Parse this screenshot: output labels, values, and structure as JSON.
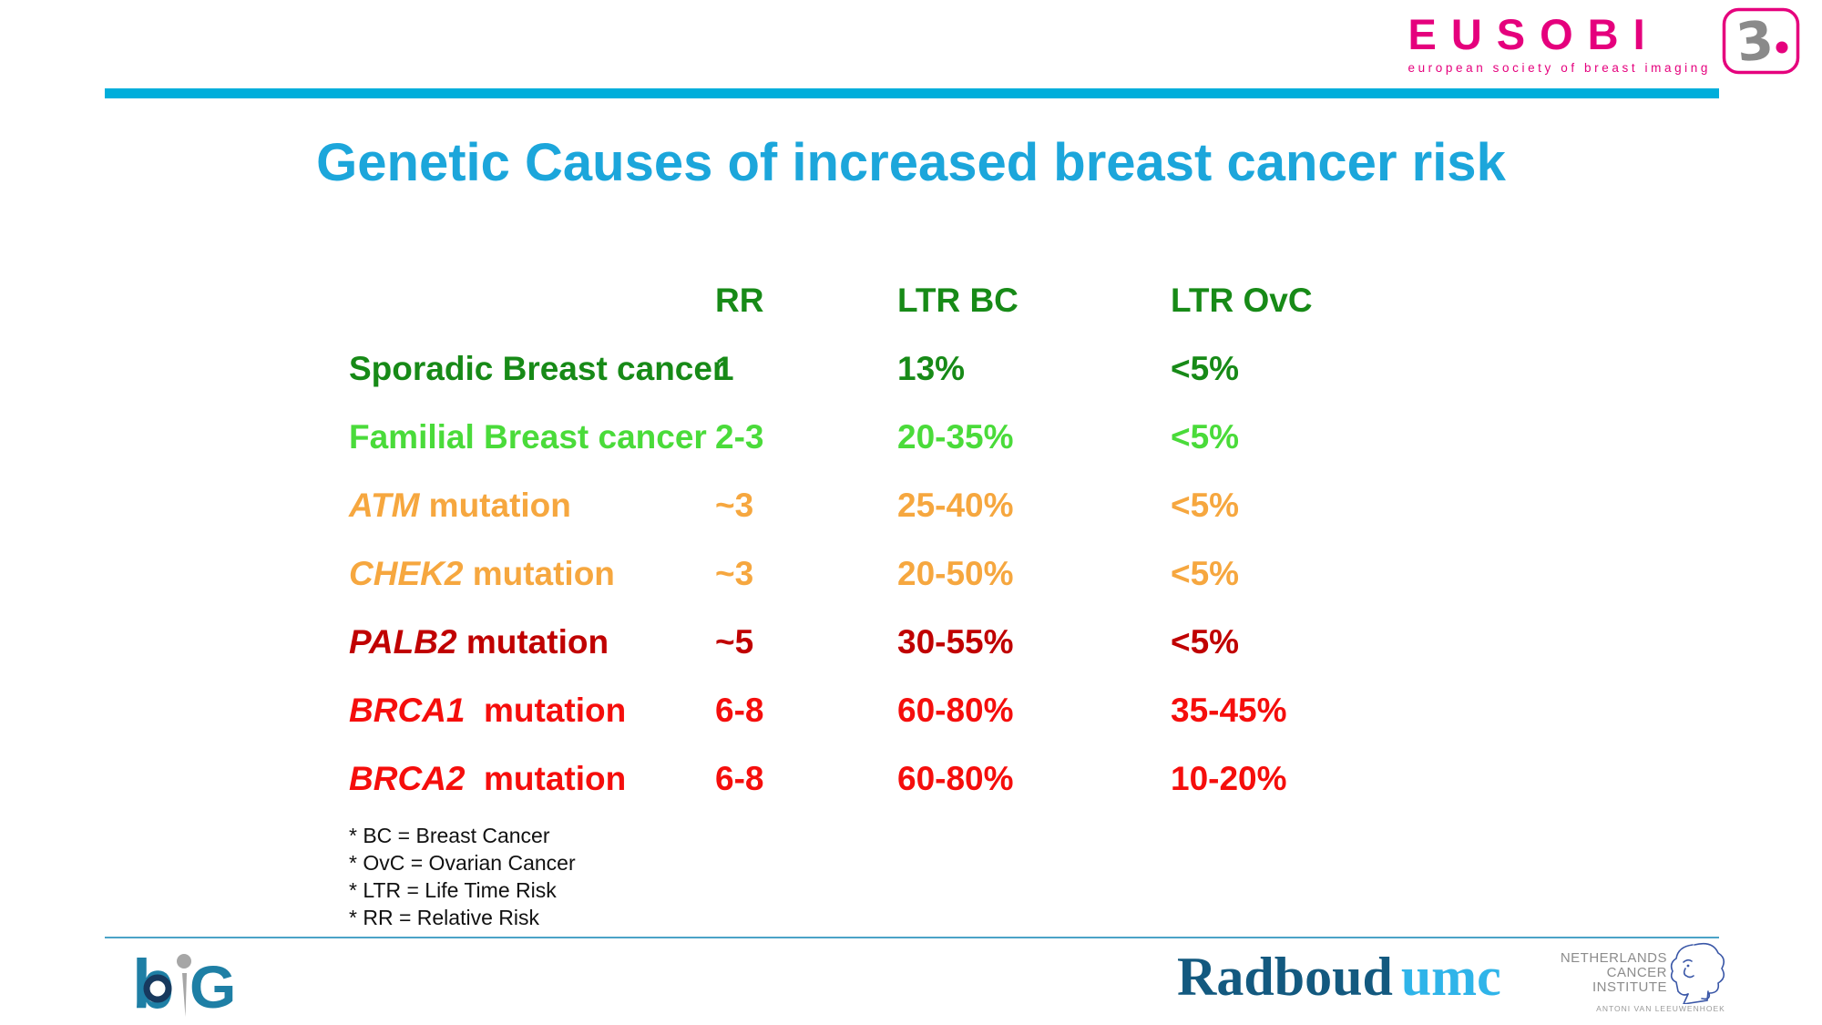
{
  "logos": {
    "eusobi": {
      "wordmark": "EUSOBI",
      "tagline": "european society of breast imaging",
      "color": "#E5007D"
    },
    "radboud": {
      "part1": "Radboud",
      "part2": "umc"
    },
    "nki": {
      "line1": "NETHERLANDS",
      "line2": "CANCER",
      "line3": "INSTITUTE",
      "subtitle": "ANTONI VAN LEEUWENHOEK"
    }
  },
  "title": {
    "text": "Genetic Causes of increased breast cancer risk",
    "color": "#1CA6DB"
  },
  "accent_colors": {
    "header_bar": "#00AEDB",
    "footer_line": "#4BA3C7"
  },
  "chart_data": {
    "type": "table",
    "title": "Genetic Causes of increased breast cancer risk",
    "columns": [
      "RR",
      "LTR BC",
      "LTR OvC"
    ],
    "header_color": "#178A17",
    "rows": [
      {
        "gene": "",
        "label": "Sporadic Breast cancer",
        "rr": "1",
        "ltr_bc": "13%",
        "ltr_ovc": "<5%",
        "color": "#178A17"
      },
      {
        "gene": "",
        "label": "Familial Breast cancer",
        "rr": "2-3",
        "ltr_bc": "20-35%",
        "ltr_ovc": "<5%",
        "color": "#4ADB3A"
      },
      {
        "gene": "ATM",
        "label": " mutation",
        "rr": "~3",
        "ltr_bc": "25-40%",
        "ltr_ovc": "<5%",
        "color": "#F6A73F"
      },
      {
        "gene": "CHEK2",
        "label": " mutation",
        "rr": "~3",
        "ltr_bc": "20-50%",
        "ltr_ovc": "<5%",
        "color": "#F6A73F"
      },
      {
        "gene": "PALB2",
        "label": " mutation",
        "rr": "~5",
        "ltr_bc": "30-55%",
        "ltr_ovc": "<5%",
        "color": "#C00000"
      },
      {
        "gene": "BRCA1",
        "label": "  mutation",
        "rr": "6-8",
        "ltr_bc": "60-80%",
        "ltr_ovc": "35-45%",
        "color": "#F50E0C"
      },
      {
        "gene": "BRCA2",
        "label": "  mutation",
        "rr": "6-8",
        "ltr_bc": "60-80%",
        "ltr_ovc": "10-20%",
        "color": "#F50E0C"
      }
    ]
  },
  "footnotes": [
    "* BC = Breast Cancer",
    "* OvC = Ovarian Cancer",
    "* LTR = Life Time Risk",
    "* RR = Relative Risk"
  ]
}
